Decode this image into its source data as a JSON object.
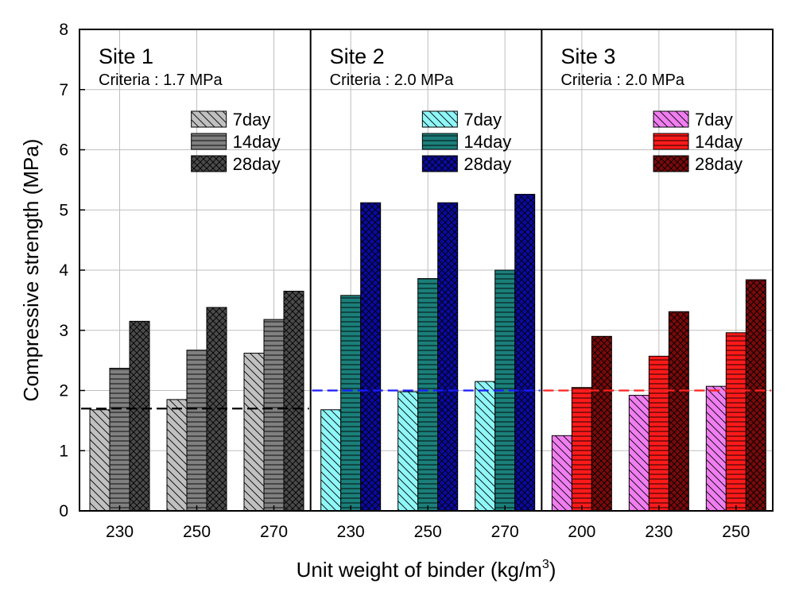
{
  "chart_data": {
    "type": "bar",
    "ylabel": "Compressive strength (MPa)",
    "xlabel": "Unit weight of binder (kg/m",
    "xlabel_superscript": "3",
    "xlabel_suffix": ")",
    "ylim": [
      0,
      8
    ],
    "yticks": [
      "0",
      "1",
      "2",
      "3",
      "4",
      "5",
      "6",
      "7",
      "8"
    ],
    "grid": true,
    "series_names": [
      "7day",
      "14day",
      "28day"
    ],
    "panels": [
      {
        "title": "Site 1",
        "criteria_label": "Criteria : 1.7 MPa",
        "criteria_value": 1.7,
        "criteria_color": "#000000",
        "legend_position": "top-right",
        "categories": [
          "230",
          "250",
          "270"
        ],
        "series": [
          {
            "name": "7day",
            "values": [
              1.68,
              1.85,
              2.62
            ],
            "color": "#c0c0c0",
            "pattern": "diagonal"
          },
          {
            "name": "14day",
            "values": [
              2.37,
              2.67,
              3.18
            ],
            "color": "#808080",
            "pattern": "horizontal"
          },
          {
            "name": "28day",
            "values": [
              3.15,
              3.38,
              3.65
            ],
            "color": "#4a4a4a",
            "pattern": "crosshatch"
          }
        ]
      },
      {
        "title": "Site 2",
        "criteria_label": "Criteria : 2.0 MPa",
        "criteria_value": 2.0,
        "criteria_color": "#1a1aff",
        "legend_position": "top-right",
        "categories": [
          "230",
          "250",
          "270"
        ],
        "series": [
          {
            "name": "7day",
            "values": [
              1.68,
              1.98,
              2.15
            ],
            "color": "#8ff7f7",
            "pattern": "diagonal"
          },
          {
            "name": "14day",
            "values": [
              3.58,
              3.86,
              4.0
            ],
            "color": "#1b7f7a",
            "pattern": "horizontal"
          },
          {
            "name": "28day",
            "values": [
              5.12,
              5.12,
              5.26
            ],
            "color": "#0a0aa0",
            "pattern": "crosshatch"
          }
        ]
      },
      {
        "title": "Site 3",
        "criteria_label": "Criteria : 2.0 MPa",
        "criteria_value": 2.0,
        "criteria_color": "#ff2020",
        "legend_position": "top-right",
        "categories": [
          "200",
          "230",
          "250"
        ],
        "series": [
          {
            "name": "7day",
            "values": [
              1.25,
              1.92,
              2.07
            ],
            "color": "#f07ef0",
            "pattern": "diagonal"
          },
          {
            "name": "14day",
            "values": [
              2.05,
              2.57,
              2.96
            ],
            "color": "#ff1a1a",
            "pattern": "horizontal"
          },
          {
            "name": "28day",
            "values": [
              2.9,
              3.31,
              3.84
            ],
            "color": "#7a0a0a",
            "pattern": "crosshatch"
          }
        ]
      }
    ]
  }
}
